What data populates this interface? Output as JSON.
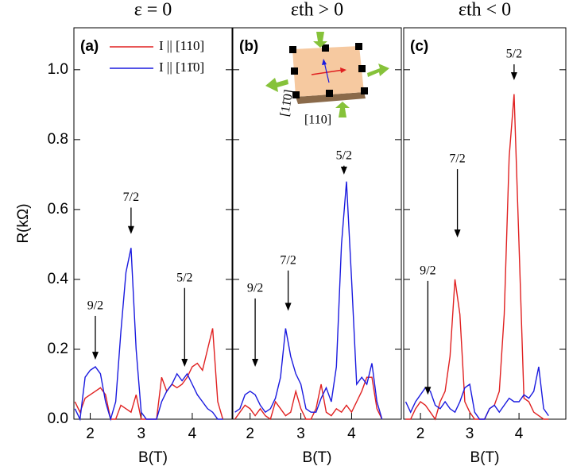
{
  "chart_data": [
    {
      "type": "line",
      "title": "ε = 0",
      "panel_label": "(a)",
      "xlabel": "B(T)",
      "ylabel": "R(kΩ)",
      "x": [
        1.7,
        1.8,
        1.9,
        2.0,
        2.1,
        2.2,
        2.3,
        2.4,
        2.5,
        2.6,
        2.7,
        2.8,
        2.9,
        3.0,
        3.1,
        3.2,
        3.3,
        3.4,
        3.5,
        3.6,
        3.7,
        3.8,
        3.9,
        4.0,
        4.1,
        4.2,
        4.3,
        4.4,
        4.5,
        4.6
      ],
      "series": [
        {
          "name": "I || [110]",
          "color": "#e02020",
          "values": [
            0.05,
            0.02,
            0.06,
            0.07,
            0.08,
            0.09,
            0.07,
            0.0,
            0.0,
            0.04,
            0.03,
            0.02,
            0.07,
            0.0,
            0.0,
            0.0,
            0.0,
            0.12,
            0.08,
            0.1,
            0.09,
            0.1,
            0.12,
            0.15,
            0.16,
            0.14,
            0.2,
            0.26,
            0.05,
            0.0
          ]
        },
        {
          "name": "I || [11̄0]",
          "color": "#1a1adf",
          "values": [
            0.03,
            0.0,
            0.12,
            0.14,
            0.15,
            0.13,
            0.05,
            0.0,
            0.05,
            0.25,
            0.42,
            0.49,
            0.2,
            0.02,
            0.0,
            0.0,
            0.0,
            0.05,
            0.08,
            0.1,
            0.13,
            0.11,
            0.13,
            0.1,
            0.07,
            0.05,
            0.03,
            0.02,
            0.0,
            0.0
          ]
        }
      ],
      "annotations": [
        {
          "text": "9/2",
          "x": 2.1,
          "y": 0.17,
          "ytext": 0.3
        },
        {
          "text": "7/2",
          "x": 2.8,
          "y": 0.53,
          "ytext": 0.61
        },
        {
          "text": "5/2",
          "x": 3.85,
          "y": 0.15,
          "ytext": 0.38
        }
      ],
      "xlim": [
        1.68,
        4.78
      ],
      "ylim": [
        0,
        1.12
      ],
      "xticks": [
        2,
        3,
        4
      ],
      "yticks": [
        {
          "value": 0,
          "label": "0.0"
        },
        0.2,
        0.4,
        0.6,
        0.8,
        {
          "value": 1,
          "label": "1.0"
        }
      ],
      "legend": "upper left"
    },
    {
      "type": "line",
      "title": "εth > 0",
      "panel_label": "(b)",
      "xlabel": "B(T)",
      "inset_labels": [
        "[11̄0]",
        "[110]"
      ],
      "x": [
        1.7,
        1.8,
        1.9,
        2.0,
        2.1,
        2.2,
        2.3,
        2.4,
        2.5,
        2.6,
        2.7,
        2.8,
        2.9,
        3.0,
        3.1,
        3.2,
        3.3,
        3.4,
        3.5,
        3.6,
        3.7,
        3.8,
        3.9,
        4.0,
        4.1,
        4.2,
        4.3,
        4.4,
        4.5,
        4.6
      ],
      "series": [
        {
          "color": "#e02020",
          "values": [
            0.0,
            0.02,
            0.04,
            0.03,
            0.01,
            0.03,
            0.01,
            0.0,
            0.05,
            0.03,
            0.01,
            0.02,
            0.08,
            0.03,
            0.0,
            0.0,
            0.03,
            0.1,
            0.02,
            0.01,
            0.03,
            0.02,
            0.04,
            0.02,
            0.05,
            0.08,
            0.12,
            0.12,
            0.03,
            0.0
          ]
        },
        {
          "color": "#1a1adf",
          "values": [
            0.02,
            0.03,
            0.07,
            0.08,
            0.07,
            0.04,
            0.02,
            0.03,
            0.06,
            0.12,
            0.26,
            0.18,
            0.13,
            0.1,
            0.03,
            0.02,
            0.02,
            0.06,
            0.09,
            0.05,
            0.15,
            0.5,
            0.68,
            0.4,
            0.1,
            0.12,
            0.1,
            0.16,
            0.05,
            0.0
          ]
        }
      ],
      "annotations": [
        {
          "text": "9/2",
          "x": 2.1,
          "y": 0.15,
          "ytext": 0.35
        },
        {
          "text": "7/2",
          "x": 2.75,
          "y": 0.31,
          "ytext": 0.43
        },
        {
          "text": "5/2",
          "x": 3.85,
          "y": 0.7,
          "ytext": 0.73
        }
      ],
      "xlim": [
        1.66,
        4.98
      ],
      "ylim": [
        0,
        1.12
      ],
      "xticks": [
        2,
        3,
        4
      ],
      "yticks": [
        0,
        0.2,
        0.4,
        0.6,
        0.8,
        1
      ]
    },
    {
      "type": "line",
      "title": "εth < 0",
      "panel_label": "(c)",
      "xlabel": "B(T)",
      "x": [
        1.7,
        1.8,
        1.9,
        2.0,
        2.1,
        2.2,
        2.3,
        2.4,
        2.5,
        2.6,
        2.7,
        2.8,
        2.9,
        3.0,
        3.1,
        3.2,
        3.3,
        3.4,
        3.5,
        3.6,
        3.7,
        3.8,
        3.9,
        4.0,
        4.1,
        4.2,
        4.3,
        4.4,
        4.5,
        4.6
      ],
      "series": [
        {
          "color": "#e02020",
          "values": [
            0.0,
            0.0,
            0.03,
            0.05,
            0.04,
            0.02,
            0.0,
            0.05,
            0.08,
            0.18,
            0.4,
            0.3,
            0.05,
            0.02,
            0.0,
            0.0,
            0.0,
            0.03,
            0.04,
            0.08,
            0.3,
            0.75,
            0.93,
            0.5,
            0.06,
            0.05,
            0.02,
            0.01,
            0.0,
            0.0
          ]
        },
        {
          "color": "#1a1adf",
          "values": [
            0.05,
            0.02,
            0.05,
            0.07,
            0.09,
            0.08,
            0.04,
            0.03,
            0.05,
            0.03,
            0.02,
            0.05,
            0.09,
            0.1,
            0.02,
            0.0,
            0.0,
            0.03,
            0.04,
            0.02,
            0.04,
            0.06,
            0.05,
            0.05,
            0.07,
            0.06,
            0.08,
            0.15,
            0.03,
            0.01
          ]
        }
      ],
      "annotations": [
        {
          "text": "9/2",
          "x": 2.15,
          "y": 0.07,
          "ytext": 0.4
        },
        {
          "text": "7/2",
          "x": 2.75,
          "y": 0.52,
          "ytext": 0.72
        },
        {
          "text": "5/2",
          "x": 3.9,
          "y": 0.97,
          "ytext": 1.02
        }
      ],
      "xlim": [
        1.66,
        4.95
      ],
      "ylim": [
        0,
        1.12
      ],
      "xticks": [
        2,
        3,
        4
      ],
      "yticks": [
        0,
        0.2,
        0.4,
        0.6,
        0.8,
        1
      ]
    }
  ]
}
